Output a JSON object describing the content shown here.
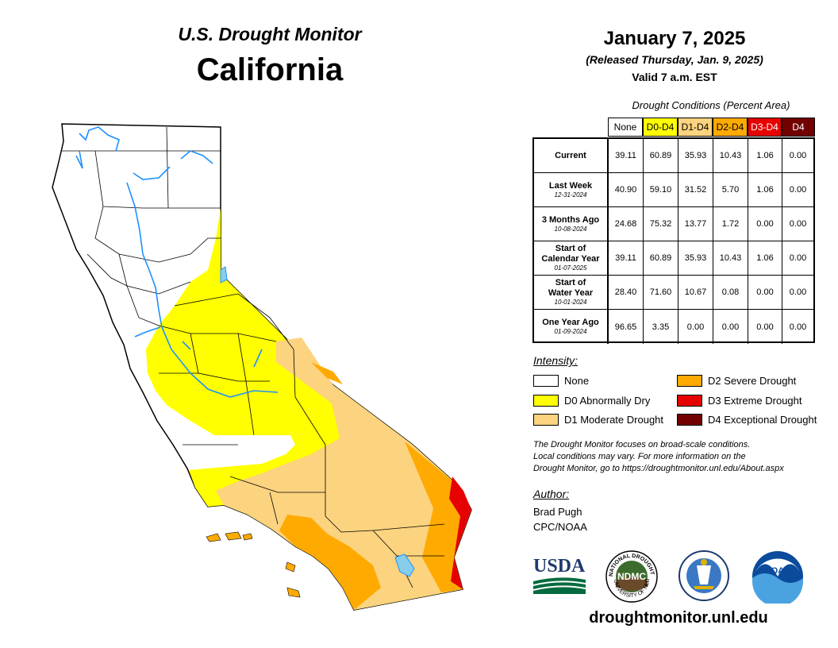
{
  "header": {
    "monitor_title": "U.S. Drought Monitor",
    "region": "California"
  },
  "release": {
    "date": "January 7, 2025",
    "released": "(Released Thursday, Jan. 9, 2025)",
    "valid": "Valid 7 a.m. EST"
  },
  "conditions_table": {
    "caption": "Drought Conditions (Percent Area)",
    "columns": [
      {
        "label": "None",
        "color": "#ffffff"
      },
      {
        "label": "D0-D4",
        "color": "#ffff00"
      },
      {
        "label": "D1-D4",
        "color": "#fcd37f"
      },
      {
        "label": "D2-D4",
        "color": "#ffaa00"
      },
      {
        "label": "D3-D4",
        "color": "#e60000"
      },
      {
        "label": "D4",
        "color": "#730000"
      }
    ],
    "rows": [
      {
        "label": "Current",
        "date": "",
        "values": [
          "39.11",
          "60.89",
          "35.93",
          "10.43",
          "1.06",
          "0.00"
        ]
      },
      {
        "label": "Last Week",
        "date": "12-31-2024",
        "values": [
          "40.90",
          "59.10",
          "31.52",
          "5.70",
          "1.06",
          "0.00"
        ]
      },
      {
        "label": "3 Months Ago",
        "date": "10-08-2024",
        "values": [
          "24.68",
          "75.32",
          "13.77",
          "1.72",
          "0.00",
          "0.00"
        ]
      },
      {
        "label": "Start of Calendar Year",
        "date": "01-07-2025",
        "values": [
          "39.11",
          "60.89",
          "35.93",
          "10.43",
          "1.06",
          "0.00"
        ]
      },
      {
        "label": "Start of Water Year",
        "date": "10-01-2024",
        "values": [
          "28.40",
          "71.60",
          "10.67",
          "0.08",
          "0.00",
          "0.00"
        ]
      },
      {
        "label": "One Year Ago",
        "date": "01-09-2024",
        "values": [
          "96.65",
          "3.35",
          "0.00",
          "0.00",
          "0.00",
          "0.00"
        ]
      }
    ]
  },
  "legend": {
    "title": "Intensity:",
    "items": [
      {
        "label": "None",
        "color": "#ffffff"
      },
      {
        "label": "D0 Abnormally Dry",
        "color": "#ffff00"
      },
      {
        "label": "D1 Moderate Drought",
        "color": "#fcd37f"
      },
      {
        "label": "D2 Severe Drought",
        "color": "#ffaa00"
      },
      {
        "label": "D3 Extreme Drought",
        "color": "#e60000"
      },
      {
        "label": "D4 Exceptional Drought",
        "color": "#730000"
      }
    ]
  },
  "note": {
    "line1": "The Drought Monitor focuses on broad-scale conditions.",
    "line2": "Local conditions may vary. For more information on the",
    "line3": "Drought Monitor, go to https://droughtmonitor.unl.edu/About.aspx"
  },
  "author": {
    "title": "Author:",
    "name": "Brad Pugh",
    "org": "CPC/NOAA"
  },
  "logos": {
    "usda": "USDA",
    "ndmc": "NDMC",
    "noaa": "NOAA",
    "ndmc_ring": "NATIONAL DROUGHT MITIGATION CENTER",
    "ndmc_ring_bottom": "UNIVERSITY OF NEBRASKA"
  },
  "footer": {
    "url": "droughtmonitor.unl.edu"
  },
  "map_colors": {
    "none": "#ffffff",
    "d0": "#ffff00",
    "d1": "#fcd37f",
    "d2": "#ffaa00",
    "d3": "#e60000",
    "water": "#87ceeb",
    "river": "#1e90ff",
    "boundary": "#000000"
  }
}
